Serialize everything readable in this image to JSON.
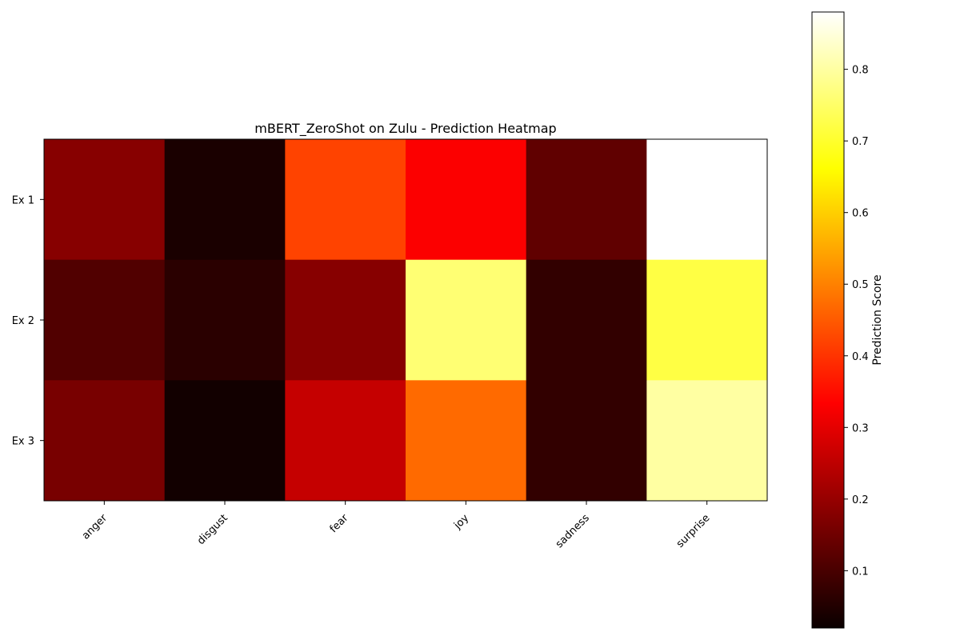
{
  "chart_data": {
    "type": "heatmap",
    "title": "mBERT_ZeroShot on Zulu - Prediction Heatmap",
    "xlabel": "",
    "ylabel": "",
    "columns": [
      "anger",
      "disgust",
      "fear",
      "joy",
      "sadness",
      "surprise"
    ],
    "rows": [
      "Ex 1",
      "Ex 2",
      "Ex 3"
    ],
    "values": [
      [
        0.18,
        0.04,
        0.42,
        0.33,
        0.13,
        0.88
      ],
      [
        0.11,
        0.06,
        0.18,
        0.76,
        0.07,
        0.72
      ],
      [
        0.16,
        0.03,
        0.26,
        0.47,
        0.07,
        0.8
      ]
    ],
    "colormap": "hot",
    "colorbar": {
      "label": "Prediction Score",
      "range": [
        0.02,
        0.88
      ],
      "ticks": [
        "0.1",
        "0.2",
        "0.3",
        "0.4",
        "0.5",
        "0.6",
        "0.7",
        "0.8"
      ]
    },
    "grid": false
  }
}
